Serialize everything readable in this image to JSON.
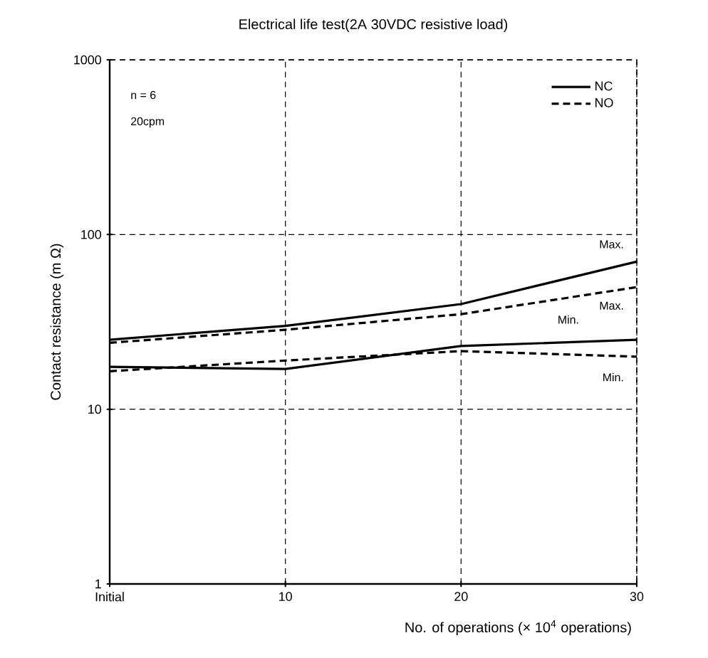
{
  "chart_data": {
    "type": "line",
    "title": "Electrical life test(2A 30VDC resistive load)",
    "xlabel": "No. of operations (× 10$^{4}$ operations)",
    "ylabel": "Contact resistance (m Ω)",
    "x": [
      0,
      10,
      20,
      30
    ],
    "series": [
      {
        "name": "NC",
        "color": "#000000",
        "line_style": "solid",
        "values": [
          25,
          30,
          40,
          70
        ]
      },
      {
        "name": "NO",
        "color": "#000000",
        "line_style": "dashed",
        "values": [
          24,
          28.5,
          35,
          50
        ]
      },
      {
        "color": "#000000",
        "line_style": "solid",
        "values": [
          17.5,
          17,
          23,
          25
        ]
      },
      {
        "color": "#000000",
        "line_style": "dashed",
        "values": [
          16.5,
          19,
          21.5,
          20
        ]
      }
    ],
    "xlim": [
      0,
      30
    ],
    "xticks": [
      {
        "value": 0,
        "label": "Initial"
      },
      10,
      20,
      30
    ],
    "ylim": [
      1,
      1000
    ],
    "yticks": [
      1,
      10,
      100,
      1000
    ],
    "log": "y",
    "grid": true,
    "legend": "top right",
    "marker": "none",
    "annotations": [
      "n = 6",
      "20cpm",
      "Max.",
      "Max.",
      "Min.",
      "Min."
    ]
  }
}
